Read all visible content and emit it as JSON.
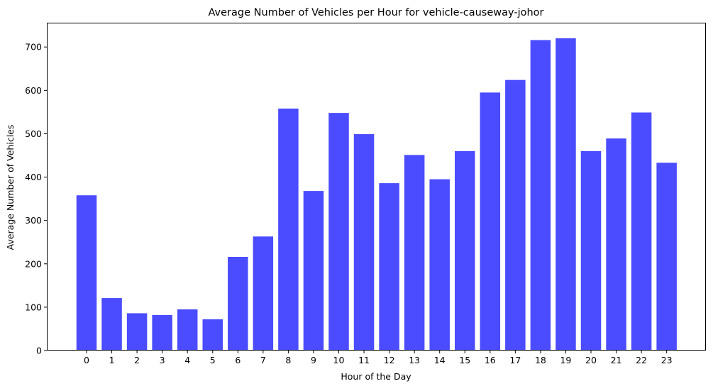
{
  "chart_data": {
    "type": "bar",
    "title": "Average Number of Vehicles per Hour for vehicle-causeway-johor",
    "xlabel": "Hour of the Day",
    "ylabel": "Average Number of Vehicles",
    "categories": [
      "0",
      "1",
      "2",
      "3",
      "4",
      "5",
      "6",
      "7",
      "8",
      "9",
      "10",
      "11",
      "12",
      "13",
      "14",
      "15",
      "16",
      "17",
      "18",
      "19",
      "20",
      "21",
      "22",
      "23"
    ],
    "values": [
      358,
      121,
      86,
      82,
      95,
      72,
      216,
      263,
      558,
      368,
      548,
      499,
      386,
      451,
      395,
      460,
      595,
      624,
      716,
      720,
      460,
      489,
      549,
      433
    ],
    "ylim": [
      0,
      756
    ],
    "yticks": [
      0,
      100,
      200,
      300,
      400,
      500,
      600,
      700
    ],
    "bar_color": "#4b4bff",
    "grid": false,
    "legend": "none"
  }
}
